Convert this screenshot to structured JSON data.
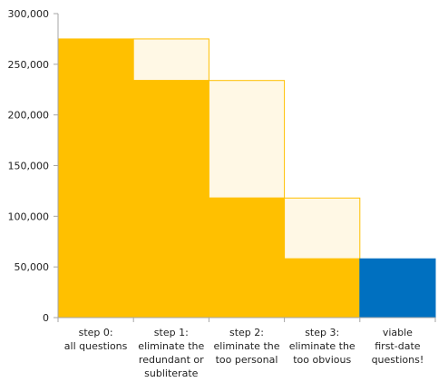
{
  "chart_data": {
    "type": "bar",
    "title": "",
    "xlabel": "",
    "ylabel": "",
    "ylim": [
      0,
      300000
    ],
    "y_ticks": [
      0,
      50000,
      100000,
      150000,
      200000,
      250000,
      300000
    ],
    "y_tick_labels": [
      "0",
      "50,000",
      "100,000",
      "150,000",
      "200,000",
      "250,000",
      "300,000"
    ],
    "grid": false,
    "legend": "none",
    "categories": [
      [
        "step 0:",
        "all questions"
      ],
      [
        "step 1:",
        "eliminate the",
        "redundant or",
        "subliterate"
      ],
      [
        "step 2:",
        "eliminate the",
        "too personal"
      ],
      [
        "step 3:",
        "eliminate the",
        "too obvious"
      ],
      [
        "viable",
        "first-date",
        "questions!"
      ]
    ],
    "remaining": [
      275000,
      234000,
      118000,
      58000,
      58000
    ],
    "removed_from": [
      null,
      275000,
      234000,
      118000,
      null
    ],
    "bar_kinds": [
      "step",
      "step",
      "step",
      "step",
      "final"
    ],
    "colors": {
      "remaining": "#FFC000",
      "removed": "#FFF8E5",
      "removed_border": "#FFC000",
      "final": "#0070C0",
      "axis": "#A6A6A6"
    }
  }
}
